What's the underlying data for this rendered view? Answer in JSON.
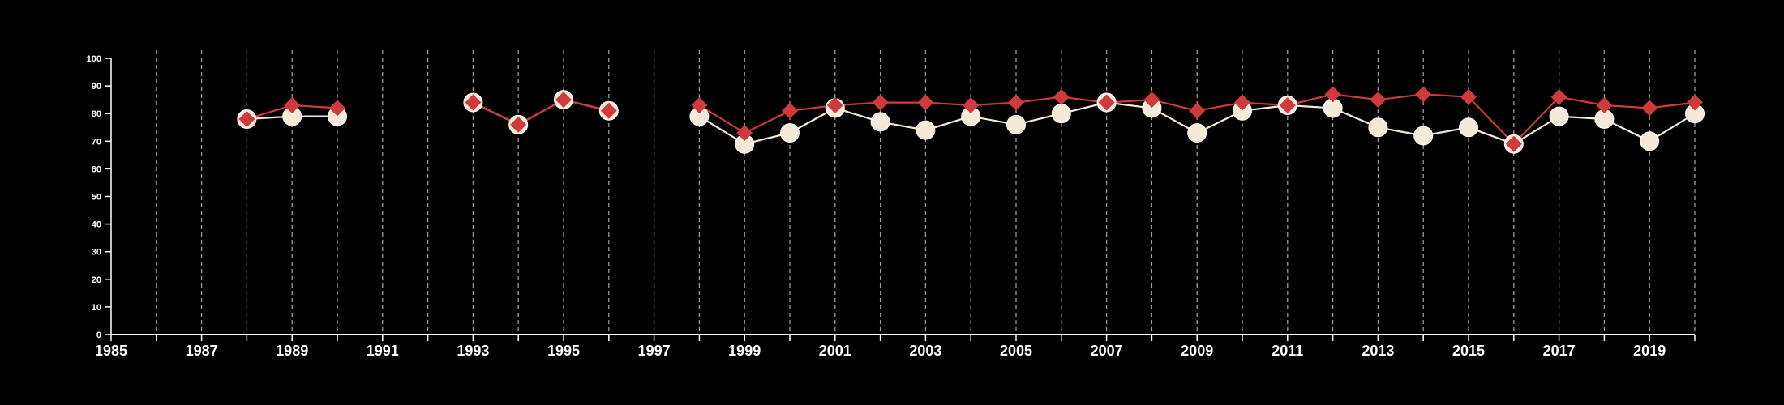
{
  "chart_data": {
    "type": "line",
    "title": "",
    "xlabel": "",
    "ylabel": "",
    "xlim": [
      1985,
      2020
    ],
    "ylim": [
      0,
      100
    ],
    "y_ticks": [
      0,
      10,
      20,
      30,
      40,
      50,
      60,
      70,
      80,
      90,
      100
    ],
    "x_ticks": [
      1985,
      1987,
      1989,
      1991,
      1993,
      1995,
      1997,
      1999,
      2001,
      2003,
      2005,
      2007,
      2009,
      2011,
      2013,
      2015,
      2017,
      2019
    ],
    "grid": "vertical dashed lines at each year",
    "series": [
      {
        "color": "#f5e9d8",
        "marker": "circle",
        "points": [
          [
            1988,
            78
          ],
          [
            1989,
            79
          ],
          [
            1990,
            79
          ],
          [
            1993,
            84
          ],
          [
            1994,
            76
          ],
          [
            1995,
            85
          ],
          [
            1996,
            81
          ],
          [
            1998,
            79
          ],
          [
            1999,
            69
          ],
          [
            2000,
            73
          ],
          [
            2001,
            82
          ],
          [
            2002,
            77
          ],
          [
            2003,
            74
          ],
          [
            2004,
            79
          ],
          [
            2005,
            76
          ],
          [
            2006,
            80
          ],
          [
            2007,
            84
          ],
          [
            2008,
            82
          ],
          [
            2009,
            73
          ],
          [
            2010,
            81
          ],
          [
            2011,
            83
          ],
          [
            2012,
            82
          ],
          [
            2013,
            75
          ],
          [
            2014,
            72
          ],
          [
            2015,
            75
          ],
          [
            2016,
            69
          ],
          [
            2017,
            79
          ],
          [
            2018,
            78
          ],
          [
            2019,
            70
          ],
          [
            2020,
            80
          ]
        ]
      },
      {
        "color": "#d03a3c",
        "marker": "diamond",
        "points": [
          [
            1988,
            78
          ],
          [
            1989,
            83
          ],
          [
            1990,
            82
          ],
          [
            1993,
            84
          ],
          [
            1994,
            76
          ],
          [
            1995,
            85
          ],
          [
            1996,
            81
          ],
          [
            1998,
            83
          ],
          [
            1999,
            73
          ],
          [
            2000,
            81
          ],
          [
            2001,
            83
          ],
          [
            2002,
            84
          ],
          [
            2003,
            84
          ],
          [
            2004,
            83
          ],
          [
            2005,
            84
          ],
          [
            2006,
            86
          ],
          [
            2007,
            84
          ],
          [
            2008,
            85
          ],
          [
            2009,
            81
          ],
          [
            2010,
            84
          ],
          [
            2011,
            83
          ],
          [
            2012,
            87
          ],
          [
            2013,
            85
          ],
          [
            2014,
            87
          ],
          [
            2015,
            86
          ],
          [
            2016,
            69
          ],
          [
            2017,
            86
          ],
          [
            2018,
            83
          ],
          [
            2019,
            82
          ],
          [
            2020,
            84
          ]
        ]
      }
    ]
  }
}
